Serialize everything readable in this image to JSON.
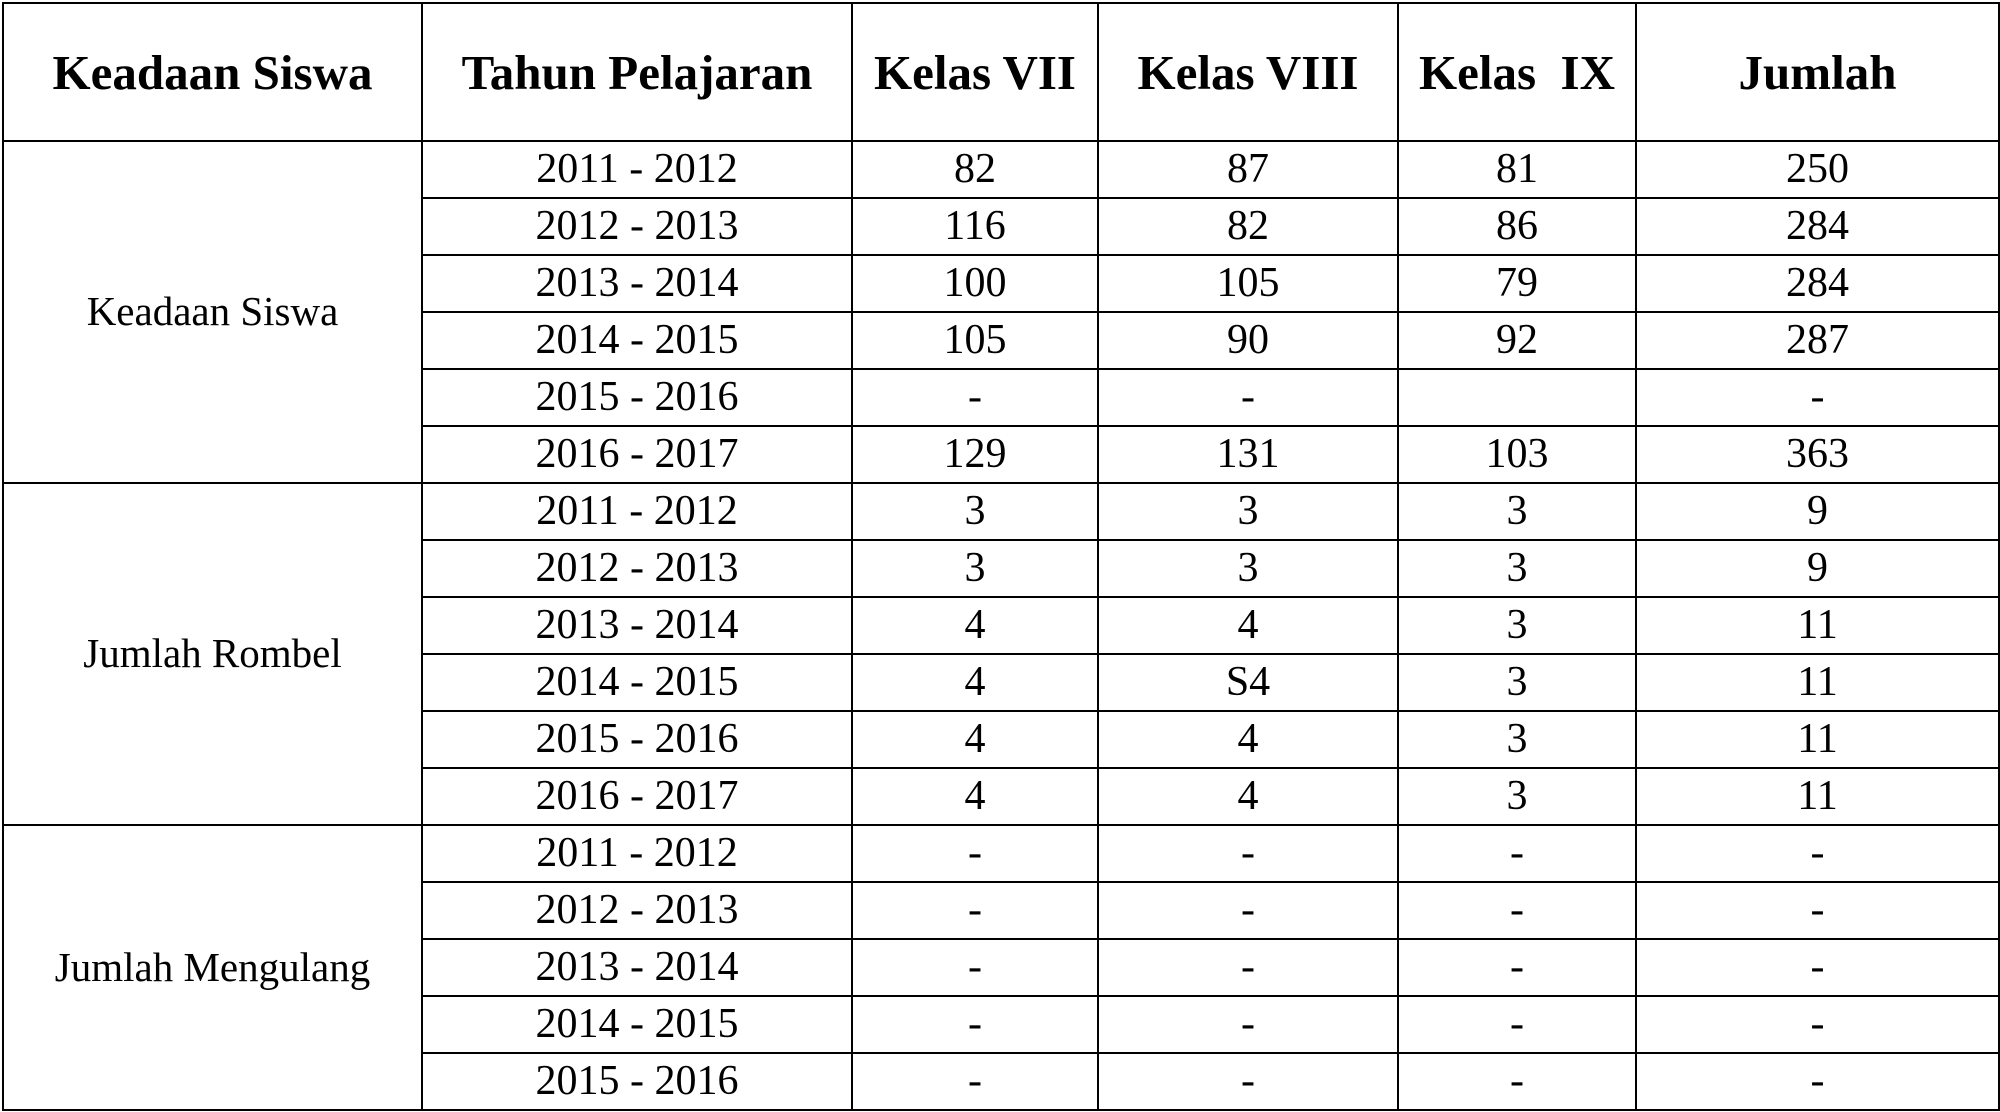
{
  "table": {
    "headers": [
      "Keadaan Siswa",
      "Tahun Pelajaran",
      "Kelas VII",
      "Kelas VIII",
      "Kelas  IX",
      "Jumlah"
    ],
    "groups": [
      {
        "label": "Keadaan Siswa",
        "rows": [
          [
            "2011 - 2012",
            "82",
            "87",
            "81",
            "250"
          ],
          [
            "2012 - 2013",
            "116",
            "82",
            "86",
            "284"
          ],
          [
            "2013 - 2014",
            "100",
            "105",
            "79",
            "284"
          ],
          [
            "2014 - 2015",
            "105",
            "90",
            "92",
            "287"
          ],
          [
            "2015 - 2016",
            "-",
            "-",
            "",
            "-"
          ],
          [
            "2016 - 2017",
            "129",
            "131",
            "103",
            "363"
          ]
        ]
      },
      {
        "label": "Jumlah Rombel",
        "rows": [
          [
            "2011 - 2012",
            "3",
            "3",
            "3",
            "9"
          ],
          [
            "2012 - 2013",
            "3",
            "3",
            "3",
            "9"
          ],
          [
            "2013 - 2014",
            "4",
            "4",
            "3",
            "11"
          ],
          [
            "2014 - 2015",
            "4",
            "S4",
            "3",
            "11"
          ],
          [
            "2015 - 2016",
            "4",
            "4",
            "3",
            "11"
          ],
          [
            "2016 - 2017",
            "4",
            "4",
            "3",
            "11"
          ]
        ]
      },
      {
        "label": "Jumlah Mengulang",
        "rows": [
          [
            "2011 - 2012",
            "-",
            "-",
            "-",
            "-"
          ],
          [
            "2012 - 2013",
            "-",
            "-",
            "-",
            "-"
          ],
          [
            "2013 - 2014",
            "-",
            "-",
            "-",
            "-"
          ],
          [
            "2014 - 2015",
            "-",
            "-",
            "-",
            "-"
          ],
          [
            "2015 - 2016",
            "-",
            "-",
            "-",
            "-"
          ]
        ]
      }
    ]
  }
}
